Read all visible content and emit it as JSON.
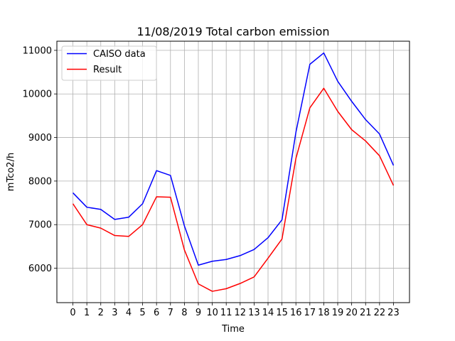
{
  "chart_data": {
    "type": "line",
    "title": "11/08/2019 Total carbon emission",
    "xlabel": "Time",
    "ylabel": "mTco2/h",
    "x": [
      0,
      1,
      2,
      3,
      4,
      5,
      6,
      7,
      8,
      9,
      10,
      11,
      12,
      13,
      14,
      15,
      16,
      17,
      18,
      19,
      20,
      21,
      22,
      23
    ],
    "xlim": [
      -1.15,
      24.15
    ],
    "ylim": [
      5210,
      11210
    ],
    "yticks": [
      6000,
      7000,
      8000,
      9000,
      10000,
      11000
    ],
    "grid": true,
    "legend_position": "top-left",
    "series": [
      {
        "name": "CAISO data",
        "color": "#0000ff",
        "values": [
          7730,
          7400,
          7350,
          7120,
          7170,
          7480,
          8240,
          8130,
          6970,
          6070,
          6160,
          6200,
          6290,
          6430,
          6700,
          7110,
          9120,
          10680,
          10940,
          10290,
          9830,
          9410,
          9080,
          8360
        ]
      },
      {
        "name": "Result",
        "color": "#ff0000",
        "values": [
          7480,
          7000,
          6920,
          6750,
          6730,
          7000,
          7640,
          7630,
          6420,
          5640,
          5470,
          5530,
          5650,
          5800,
          6230,
          6670,
          8520,
          9680,
          10130,
          9600,
          9180,
          8920,
          8580,
          7900
        ]
      }
    ]
  }
}
